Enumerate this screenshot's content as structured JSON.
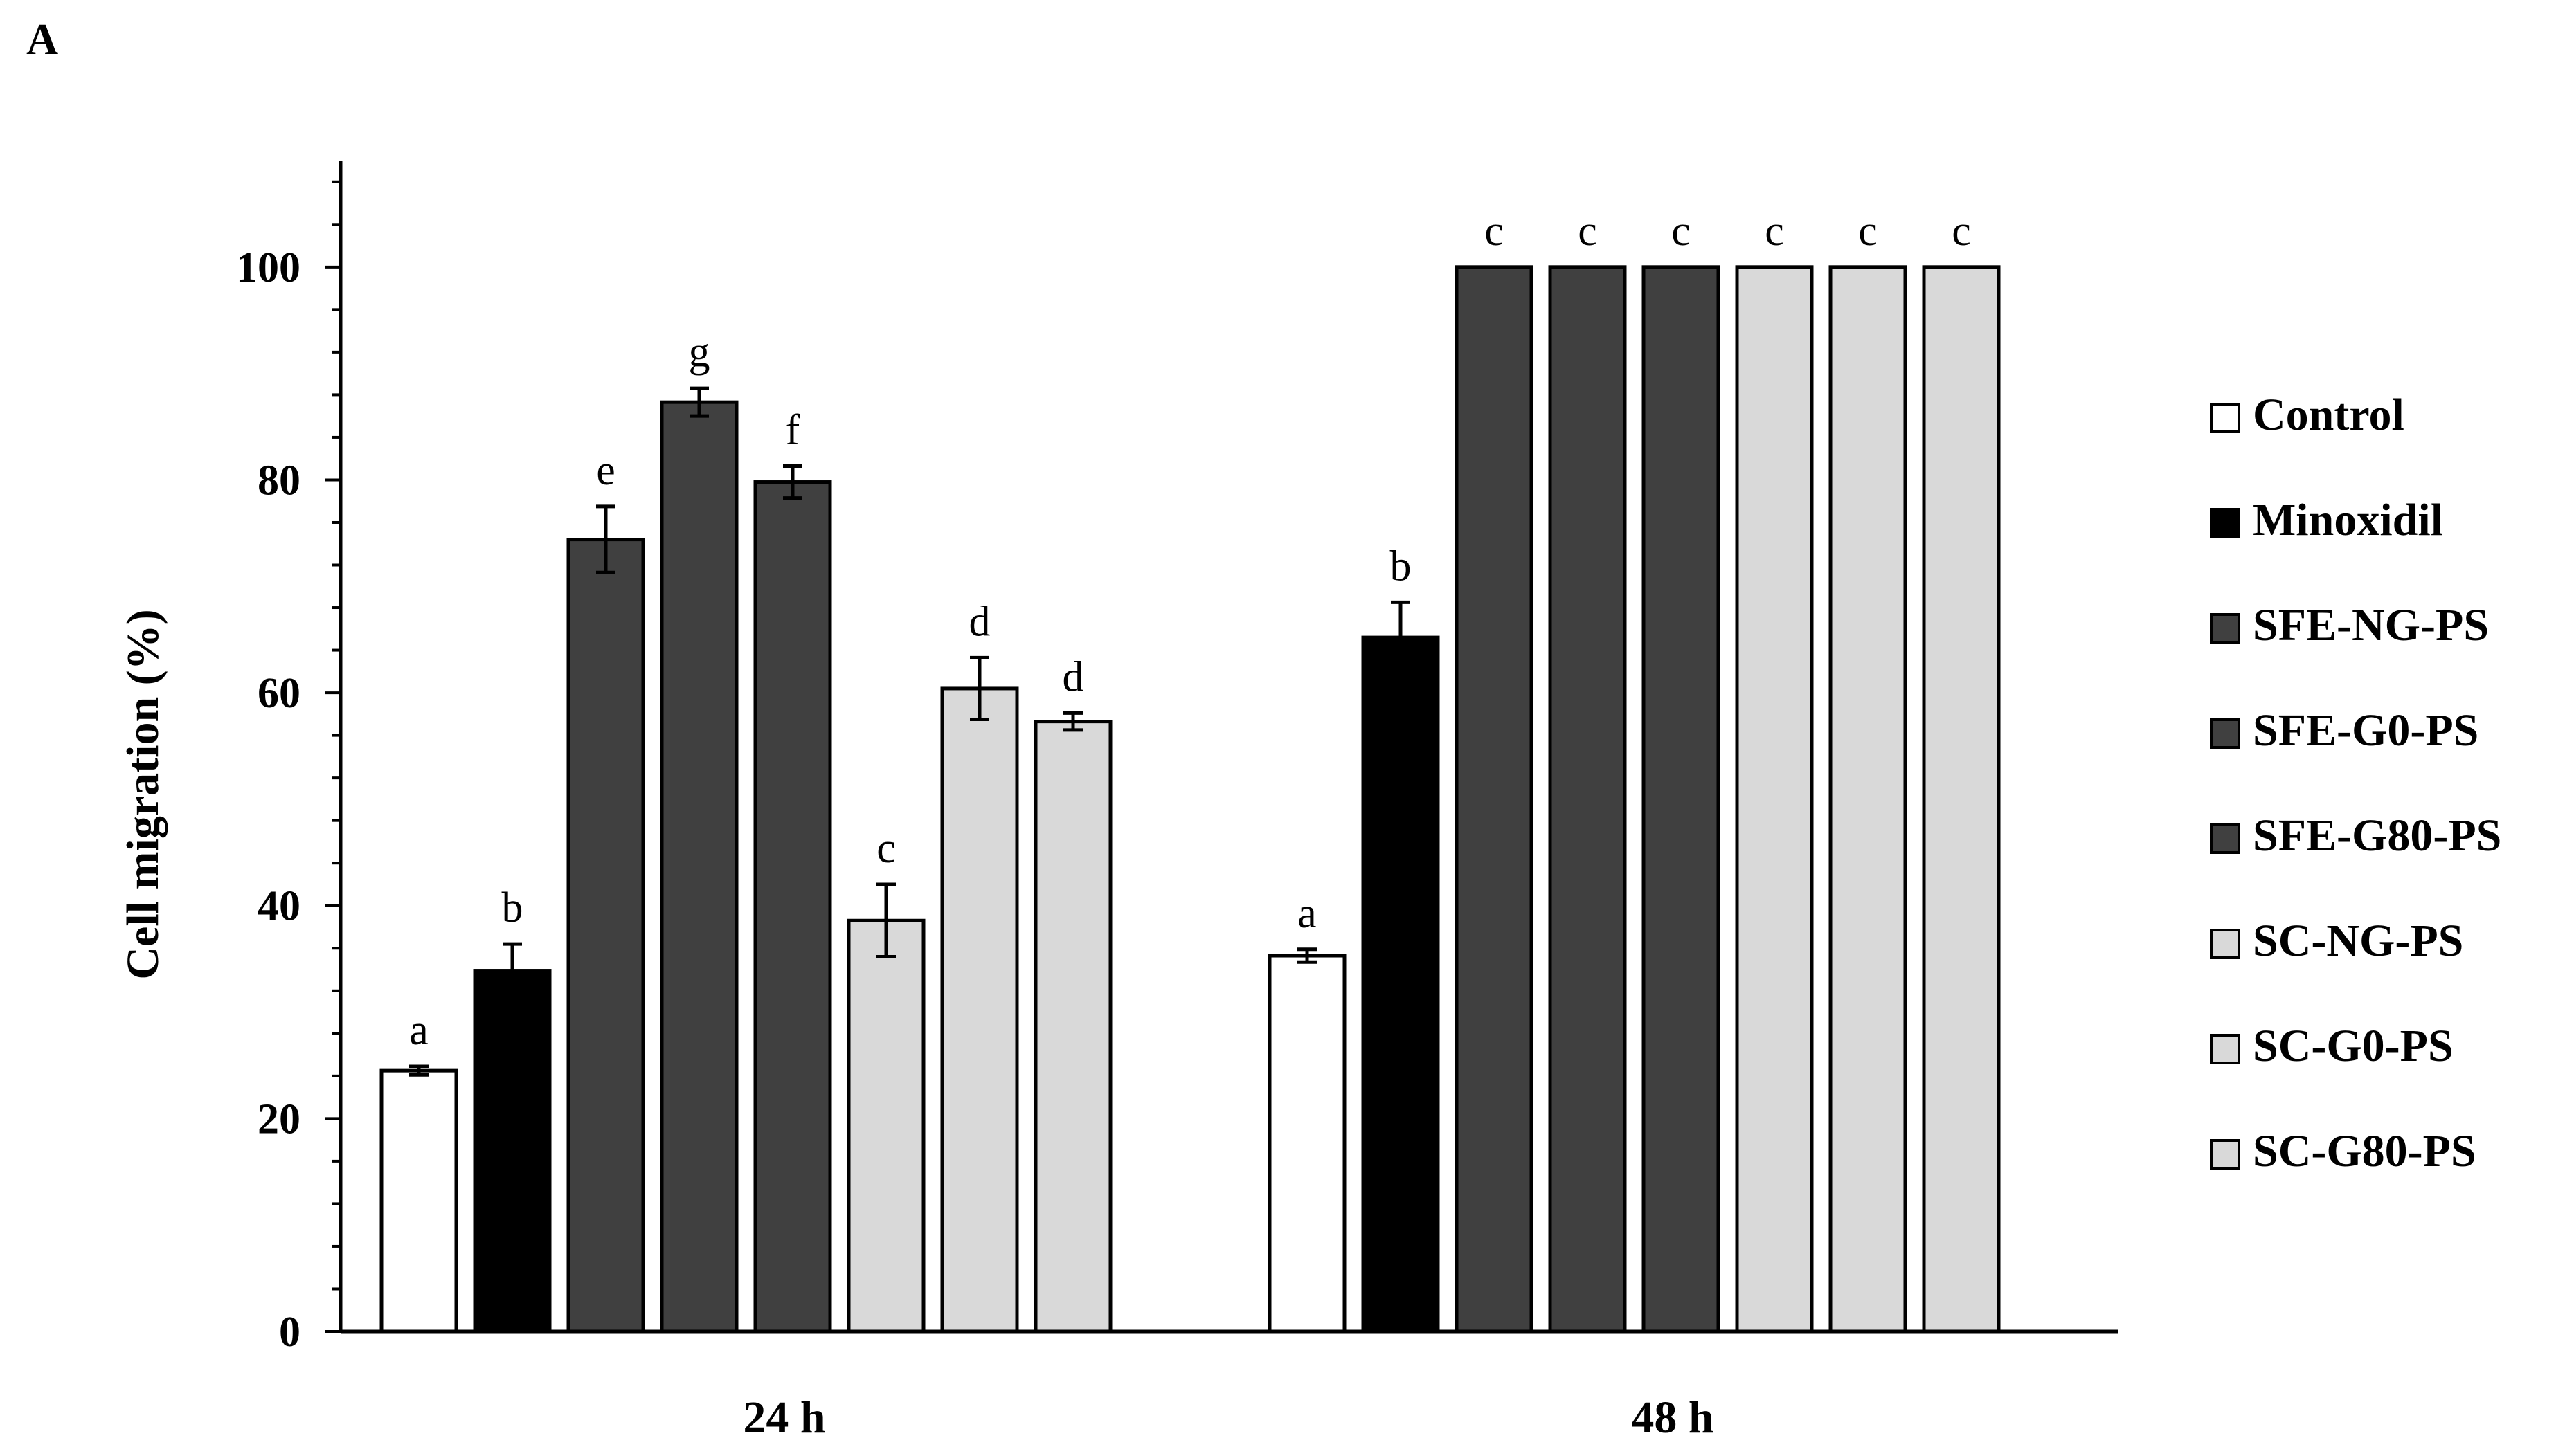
{
  "panel_label": "A",
  "chart_data": {
    "type": "bar",
    "title": "",
    "xlabel": "",
    "ylabel": "Cell migration (%)",
    "ylim": [
      0,
      110
    ],
    "yticks": [
      0,
      20,
      40,
      60,
      80,
      100
    ],
    "grid": false,
    "legend_position": "right",
    "categories": [
      "24 h",
      "48 h"
    ],
    "series": [
      {
        "name": "Control",
        "color": "#ffffff",
        "values": [
          24.5,
          35.3
        ],
        "errors": [
          0.4,
          0.6
        ],
        "letters": [
          "a",
          "a"
        ]
      },
      {
        "name": "Minoxidil",
        "color": "#000000",
        "values": [
          33.9,
          65.2
        ],
        "errors": [
          2.5,
          3.3
        ],
        "letters": [
          "b",
          "b"
        ]
      },
      {
        "name": "SFE-NG-PS",
        "color": "#404040",
        "values": [
          74.4,
          100
        ],
        "errors": [
          3.1,
          0
        ],
        "letters": [
          "e",
          "c"
        ]
      },
      {
        "name": "SFE-G0-PS",
        "color": "#404040",
        "values": [
          87.3,
          100
        ],
        "errors": [
          1.3,
          0
        ],
        "letters": [
          "g",
          "c"
        ]
      },
      {
        "name": "SFE-G80-PS",
        "color": "#404040",
        "values": [
          79.8,
          100
        ],
        "errors": [
          1.5,
          0
        ],
        "letters": [
          "f",
          "c"
        ]
      },
      {
        "name": "SC-NG-PS",
        "color": "#d9d9d9",
        "values": [
          38.6,
          100
        ],
        "errors": [
          3.4,
          0
        ],
        "letters": [
          "c",
          "c"
        ]
      },
      {
        "name": "SC-G0-PS",
        "color": "#d9d9d9",
        "values": [
          60.4,
          100
        ],
        "errors": [
          2.9,
          0
        ],
        "letters": [
          "d",
          "c"
        ]
      },
      {
        "name": "SC-G80-PS",
        "color": "#d9d9d9",
        "values": [
          57.3,
          100
        ],
        "errors": [
          0.8,
          0
        ],
        "letters": [
          "d",
          "c"
        ]
      }
    ]
  }
}
